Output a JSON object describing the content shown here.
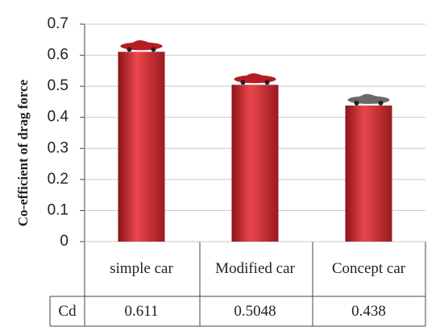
{
  "chart_data": {
    "type": "bar",
    "y_label": "Co-efficient of drag force",
    "categories": [
      "simple car",
      "Modified car",
      "Concept car"
    ],
    "series": [
      {
        "name": "Cd",
        "color": "#c8282e",
        "values": [
          0.611,
          0.5048,
          0.438
        ]
      }
    ],
    "ylim": [
      0,
      0.7
    ],
    "yticks": [
      0,
      0.1,
      0.2,
      0.3,
      0.4,
      0.5,
      0.6,
      0.7
    ],
    "grid": true
  }
}
